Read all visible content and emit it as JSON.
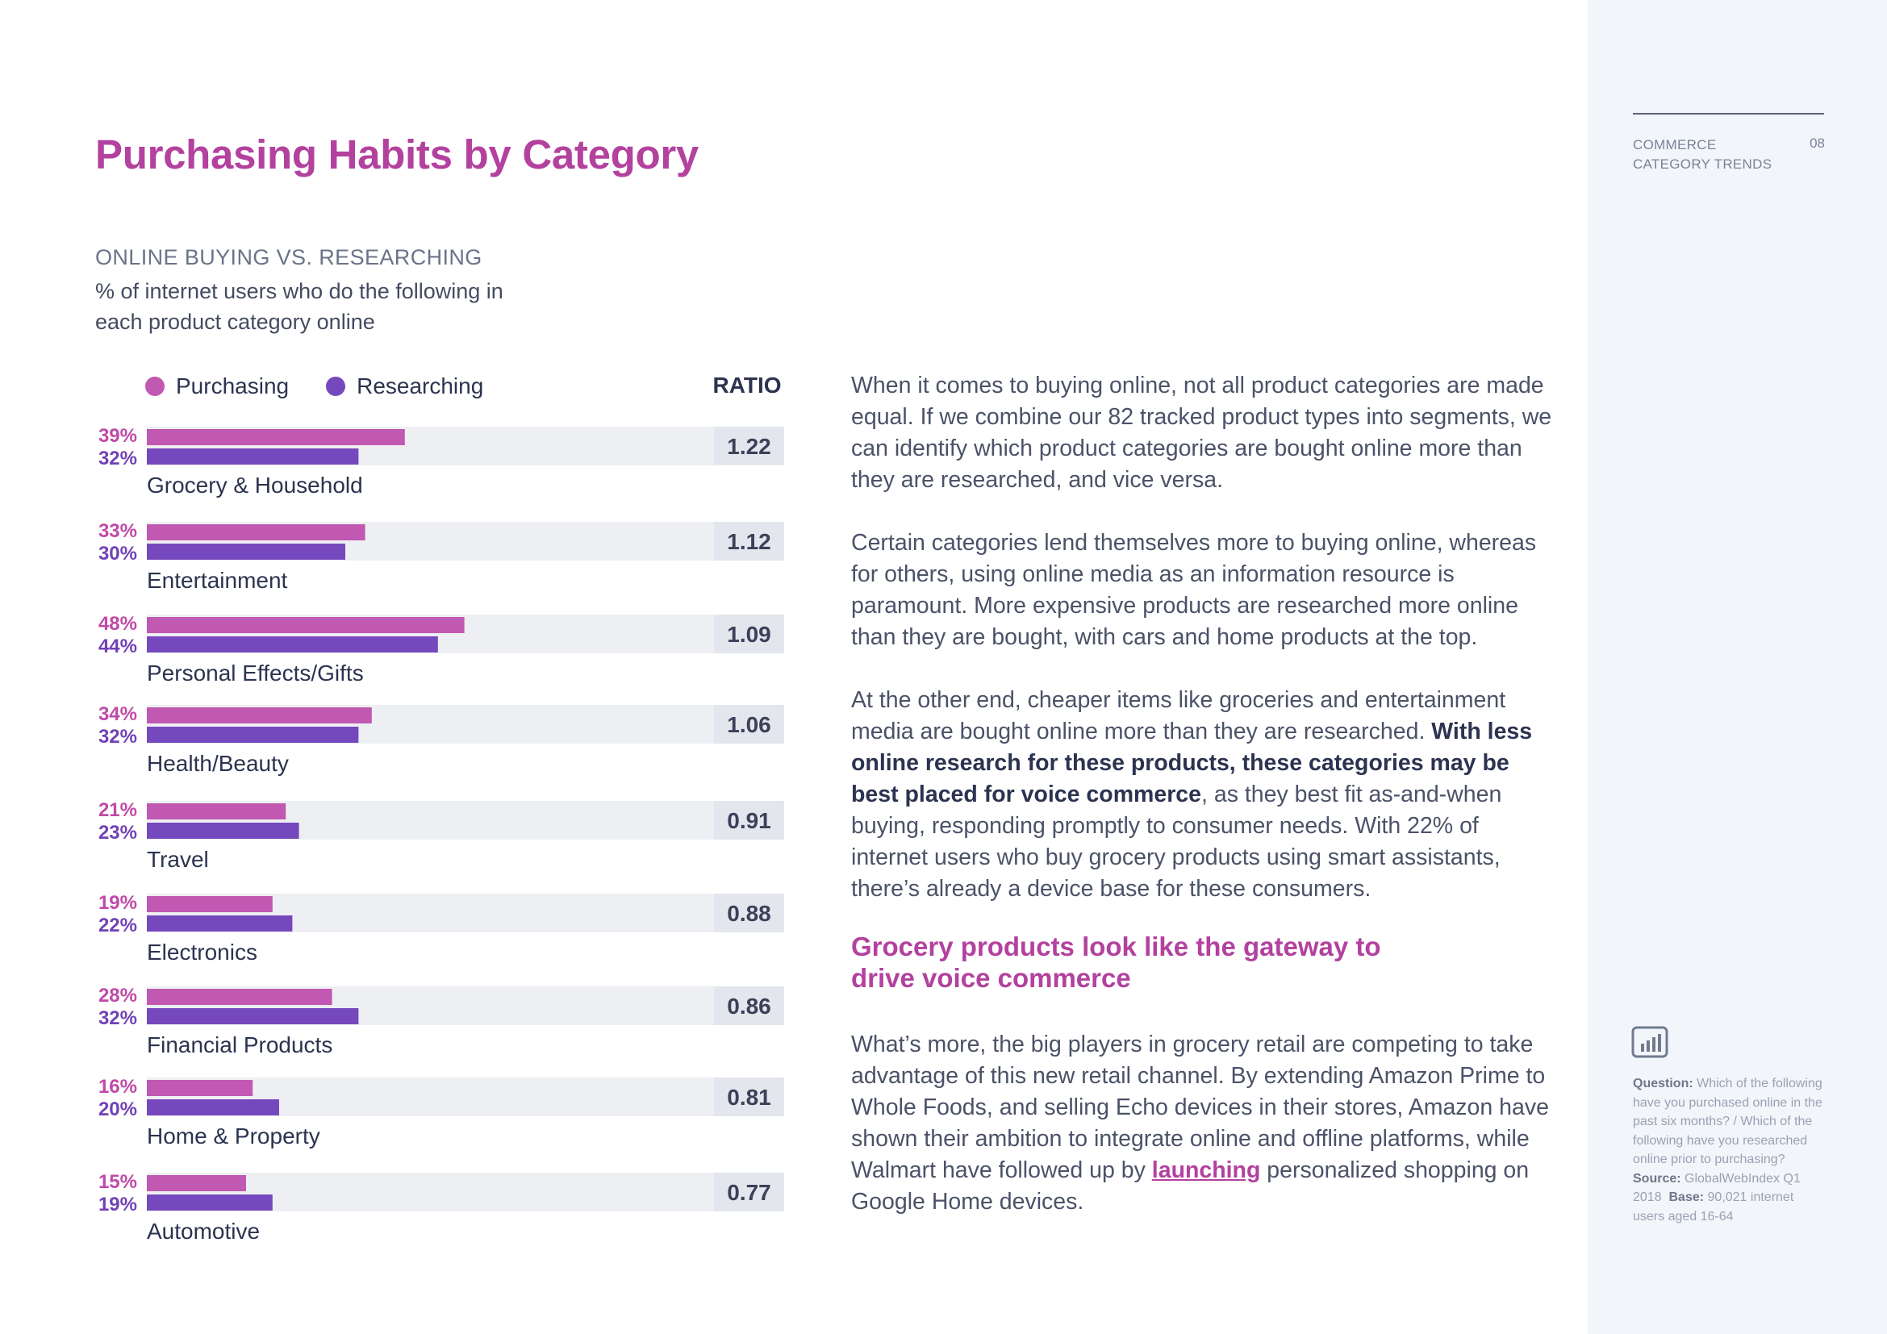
{
  "title": "Purchasing Habits by Category",
  "chart_subtitle": "ONLINE BUYING VS. RESEARCHING",
  "chart_description": "% of internet users who do the following in each product category online",
  "sidebar": {
    "section_line1": "COMMERCE",
    "section_line2": "CATEGORY TRENDS",
    "page_number": "08",
    "note": {
      "question_label": "Question:",
      "question_text": "Which of the following have you purchased online in the past six months? / Which of the following have you researched online prior to purchasing?",
      "source_label": "Source:",
      "source_text": "GlobalWebIndex Q1 2018",
      "base_label": "Base:",
      "base_text": "90,021 internet users aged 16-64"
    }
  },
  "colors": {
    "purchasing": "#c158b1",
    "researching": "#7648bd",
    "purchasing_label": "#c04aa7",
    "researching_label": "#7142b6",
    "track": "#eeeff3",
    "ratio_box": "#e4e6ee"
  },
  "chart_data": {
    "type": "bar",
    "orientation": "horizontal",
    "title": "ONLINE BUYING VS. RESEARCHING",
    "ylabel": "% of internet users who do the following in each product category online",
    "ratio_label": "RATIO",
    "value_suffix": "%",
    "xlim": [
      0,
      100
    ],
    "legend_position": "top-left",
    "categories": [
      "Grocery & Household",
      "Entertainment",
      "Personal Effects/Gifts",
      "Health/Beauty",
      "Travel",
      "Electronics",
      "Financial Products",
      "Home & Property",
      "Automotive"
    ],
    "series": [
      {
        "name": "Purchasing",
        "values": [
          39,
          33,
          48,
          34,
          21,
          19,
          28,
          16,
          15
        ]
      },
      {
        "name": "Researching",
        "values": [
          32,
          30,
          44,
          32,
          23,
          22,
          32,
          20,
          19
        ]
      }
    ],
    "ratios": [
      "1.22",
      "1.12",
      "1.09",
      "1.06",
      "0.91",
      "0.88",
      "0.86",
      "0.81",
      "0.77"
    ]
  },
  "article": {
    "p1": "When it comes to buying online, not all product categories are made equal. If we combine our 82 tracked product types into segments, we can identify which product categories are bought online more than they are researched, and vice versa.",
    "p2": "Certain categories lend themselves more to buying online, whereas for others, using online media as an information resource is paramount. More expensive products are researched more online than they are bought, with cars and home products at the top.",
    "p3_a": "At the other end, cheaper items like groceries and entertainment media are bought online more than they are researched. ",
    "p3_b": "With less online research for these products, these categories may be best placed for voice commerce",
    "p3_c": ", as they best fit as-and-when buying, responding promptly to consumer needs. With 22% of internet users who buy grocery products using smart assistants, there’s already a device base for these consumers.",
    "subhead": "Grocery products look like the gateway to drive voice commerce",
    "p4_a": "What’s more, the big players in grocery retail are competing to take advantage of this new retail channel. By extending Amazon Prime to Whole Foods, and selling Echo devices in their stores, Amazon have shown their ambition to integrate online and offline platforms, while Walmart have followed up by ",
    "p4_link": "launching",
    "p4_b": " personalized shopping on Google Home devices."
  }
}
